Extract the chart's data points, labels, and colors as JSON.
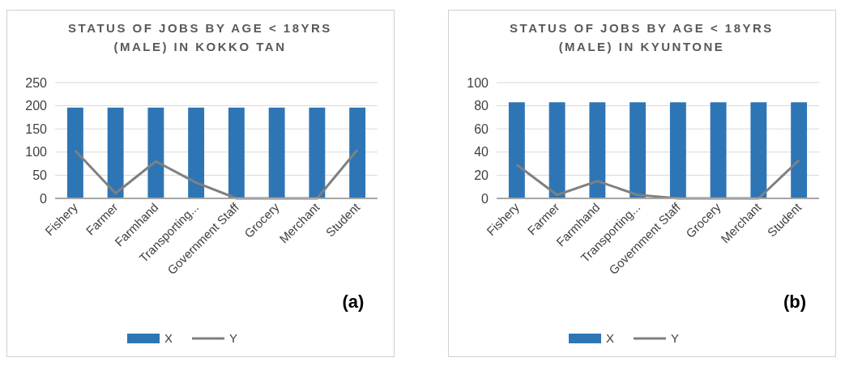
{
  "chart_data": [
    {
      "type": "bar",
      "title": "STATUS OF JOBS BY AGE < 18YRS (MALE) IN KOKKO TAN",
      "categories": [
        "Fishery",
        "Farmer",
        "Farmhand",
        "Transporting...",
        "Government Staff",
        "Grocery",
        "Merchant",
        "Student"
      ],
      "series": [
        {
          "name": "X",
          "color": "#2e75b6",
          "values": [
            196,
            196,
            196,
            196,
            196,
            196,
            196,
            196
          ]
        },
        {
          "name": "Y",
          "type": "line",
          "color": "#808080",
          "values": [
            103,
            11,
            80,
            34,
            0,
            0,
            0,
            105
          ]
        }
      ],
      "ylim": [
        0,
        250
      ],
      "yticks": [
        0,
        50,
        100,
        150,
        200,
        250
      ],
      "grid": "y",
      "legend": "bottom",
      "marker": "none",
      "annotations": [
        "(a)"
      ]
    },
    {
      "type": "bar",
      "title": "STATUS OF JOBS BY AGE < 18YRS (MALE) IN KYUNTONE",
      "categories": [
        "Fishery",
        "Farmer",
        "Farmhand",
        "Transporting...",
        "Government Staff",
        "Grocery",
        "Merchant",
        "Student"
      ],
      "series": [
        {
          "name": "X",
          "color": "#2e75b6",
          "values": [
            83,
            83,
            83,
            83,
            83,
            83,
            83,
            83
          ]
        },
        {
          "name": "Y",
          "type": "line",
          "color": "#808080",
          "values": [
            29,
            3,
            15,
            3,
            0,
            0,
            0,
            33
          ]
        }
      ],
      "ylim": [
        0,
        100
      ],
      "yticks": [
        0,
        20,
        40,
        60,
        80,
        100
      ],
      "grid": "y",
      "legend": "bottom",
      "marker": "none",
      "annotations": [
        "(b)"
      ]
    }
  ]
}
